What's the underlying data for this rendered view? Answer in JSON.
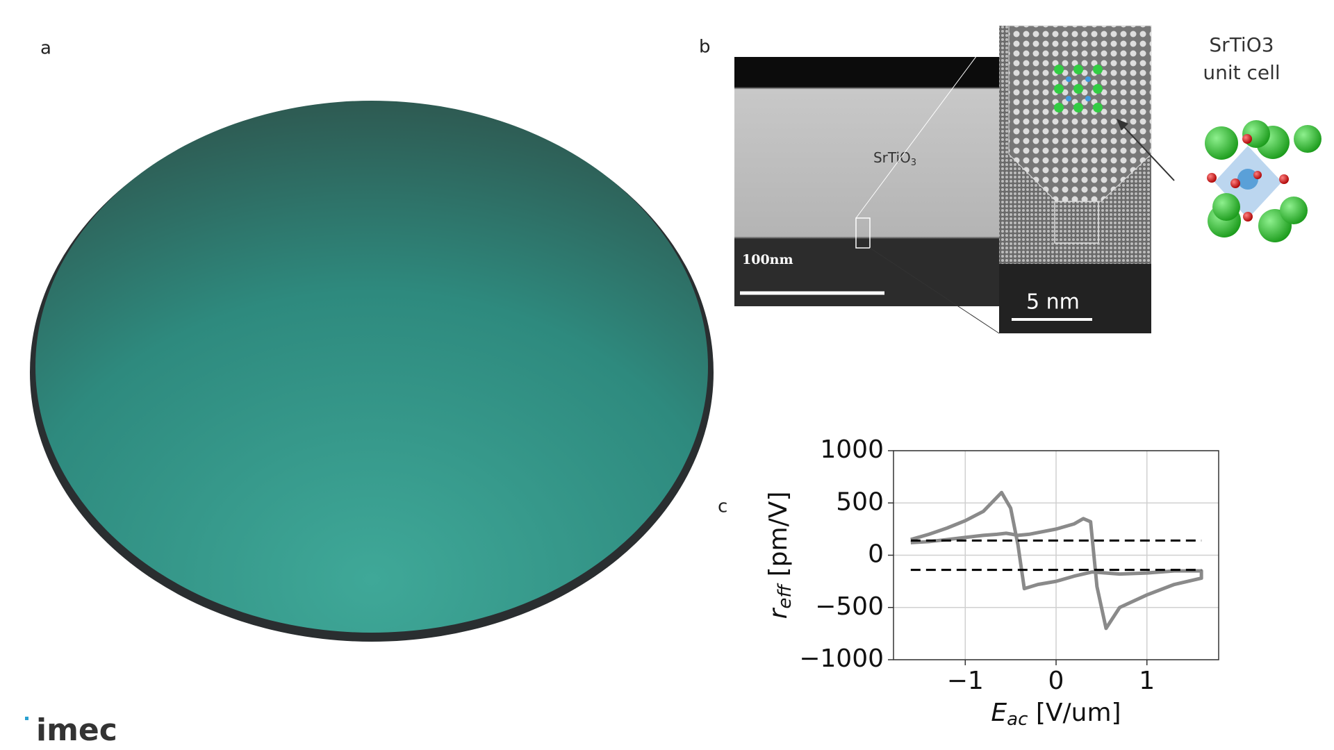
{
  "panels": {
    "a": "a",
    "b": "b",
    "c": "c"
  },
  "tem": {
    "material": "SrTiO",
    "material_sub": "3",
    "scale_large": "100nm",
    "scale_small": "5 nm"
  },
  "unit_cell": {
    "title": "SrTiO3",
    "subtitle": "unit cell"
  },
  "logo": "imec",
  "chart_data": {
    "type": "line",
    "ylabel": {
      "base": "r",
      "sub": "eff",
      "unit": " [pm/V]"
    },
    "xlabel": {
      "base": "E",
      "sub": "ac",
      "unit": " [V/um]"
    },
    "xlim": [
      -1.79,
      1.79
    ],
    "ylim": [
      -1000,
      1000
    ],
    "xticks": [
      {
        "value": -1,
        "label": "−1"
      },
      0,
      1
    ],
    "yticks": [
      {
        "value": -1000,
        "label": "−1000"
      },
      {
        "value": -500,
        "label": "−500"
      },
      0,
      500,
      1000
    ],
    "grid": true,
    "series": [
      {
        "color": "#8a8a8a",
        "dashed": false,
        "x": [
          -1.6,
          -1.4,
          -1.2,
          -1.0,
          -0.8,
          -0.65,
          -0.55,
          -0.48,
          -0.42,
          -0.3,
          0.0,
          0.2,
          0.3,
          0.38,
          0.45,
          0.55,
          0.7,
          1.0,
          1.3,
          1.6,
          1.6,
          1.3,
          1.0,
          0.7,
          0.4,
          0.2,
          0.0,
          -0.2,
          -0.35,
          -0.42,
          -0.5,
          -0.6,
          -0.8,
          -1.0,
          -1.2,
          -1.4,
          -1.6
        ],
        "values": [
          120,
          130,
          150,
          170,
          190,
          200,
          210,
          200,
          190,
          200,
          250,
          300,
          350,
          320,
          -300,
          -700,
          -500,
          -380,
          -280,
          -220,
          -150,
          -150,
          -170,
          -180,
          -160,
          -200,
          -250,
          -280,
          -320,
          100,
          450,
          600,
          420,
          330,
          260,
          200,
          150
        ]
      },
      {
        "color": "#000000",
        "dashed": true,
        "x": [
          -1.6,
          1.6
        ],
        "values": [
          140,
          140
        ]
      },
      {
        "color": "#000000",
        "dashed": true,
        "x": [
          -1.6,
          1.6
        ],
        "values": [
          -140,
          -140
        ]
      }
    ]
  }
}
